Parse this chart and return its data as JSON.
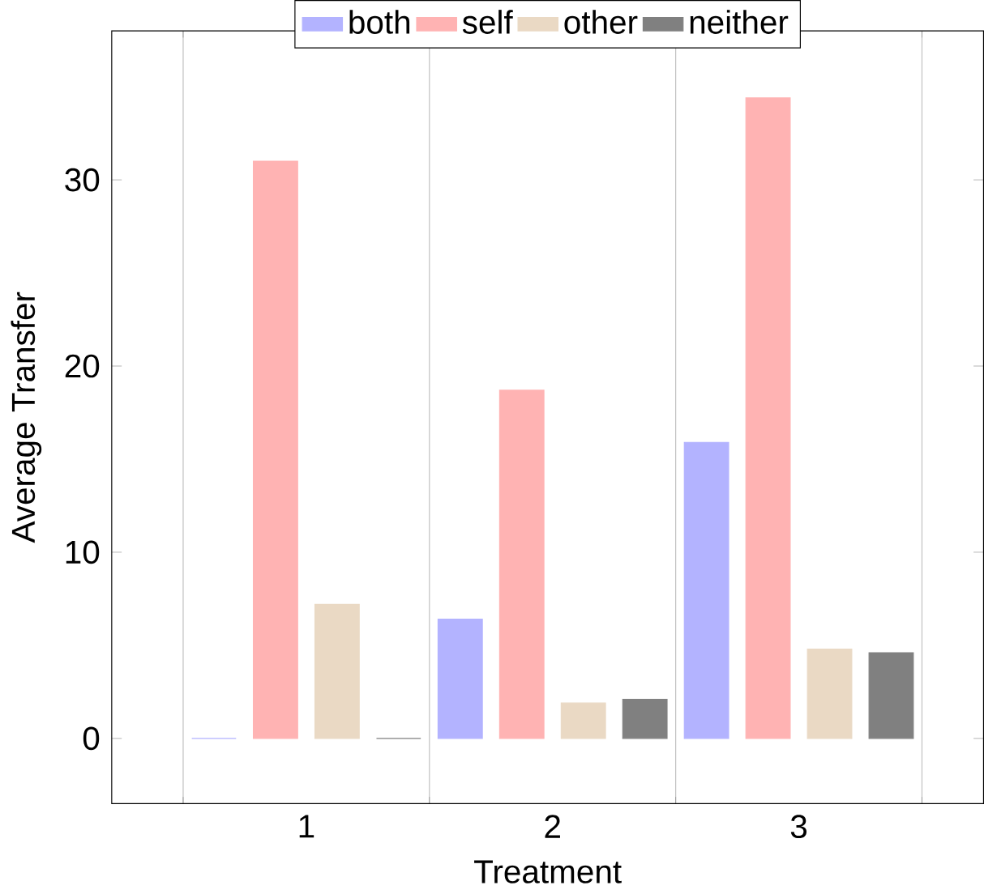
{
  "chart_data": {
    "type": "bar",
    "xlabel": "Treatment",
    "ylabel": "Average Transfer",
    "categories": [
      "1",
      "2",
      "3"
    ],
    "series": [
      {
        "name": "both",
        "color": "#b3b3ff",
        "values": [
          0,
          6.4,
          15.9
        ]
      },
      {
        "name": "self",
        "color": "#ffb3b3",
        "values": [
          31.0,
          18.7,
          34.4
        ]
      },
      {
        "name": "other",
        "color": "#ead9c4",
        "values": [
          7.2,
          1.9,
          4.8
        ]
      },
      {
        "name": "neither",
        "color": "#808080",
        "values": [
          0,
          2.1,
          4.6
        ]
      }
    ],
    "ylim": [
      -3.5,
      38
    ],
    "yticks": [
      0,
      10,
      20,
      30
    ],
    "grid": "x",
    "legend": "top"
  }
}
